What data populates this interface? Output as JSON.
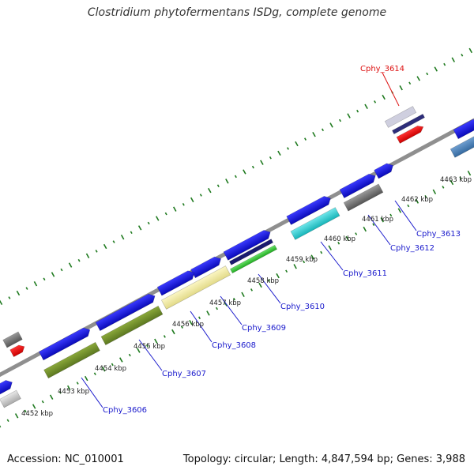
{
  "title": "Clostridium phytofermentans ISDg, complete genome",
  "footer": {
    "accession": "Accession: NC_010001",
    "summary": "Topology: circular; Length: 4,847,594 bp; Genes: 3,988"
  },
  "colors": {
    "backbone": "#8f8f8f",
    "tick": "#1f7a1f",
    "gene_blue": "#1515d8",
    "label_blue": "#1a1acc",
    "label_red": "#dd1010"
  },
  "ticks": [
    "4452 kbp",
    "4453 kbp",
    "4454 kbp",
    "4455 kbp",
    "4456 kbp",
    "4457 kbp",
    "4458 kbp",
    "4459 kbp",
    "4460 kbp",
    "4461 kbp",
    "4462 kbp",
    "4463 kbp"
  ],
  "genes": [
    {
      "name": "Cphy_3606",
      "color": "#6e8b28"
    },
    {
      "name": "Cphy_3607",
      "color": "#6e8b28"
    },
    {
      "name": "Cphy_3608",
      "color": "#eee8a0"
    },
    {
      "name": "Cphy_3609",
      "color": "#2d2d7a"
    },
    {
      "name": "Cphy_3610",
      "color": "#33cc33"
    },
    {
      "name": "Cphy_3611",
      "color": "#22c8cc"
    },
    {
      "name": "Cphy_3612",
      "color": "#666666"
    },
    {
      "name": "Cphy_3613",
      "color": "#1515d8"
    },
    {
      "name": "Cphy_3614",
      "color": "#a9a9d8"
    }
  ]
}
